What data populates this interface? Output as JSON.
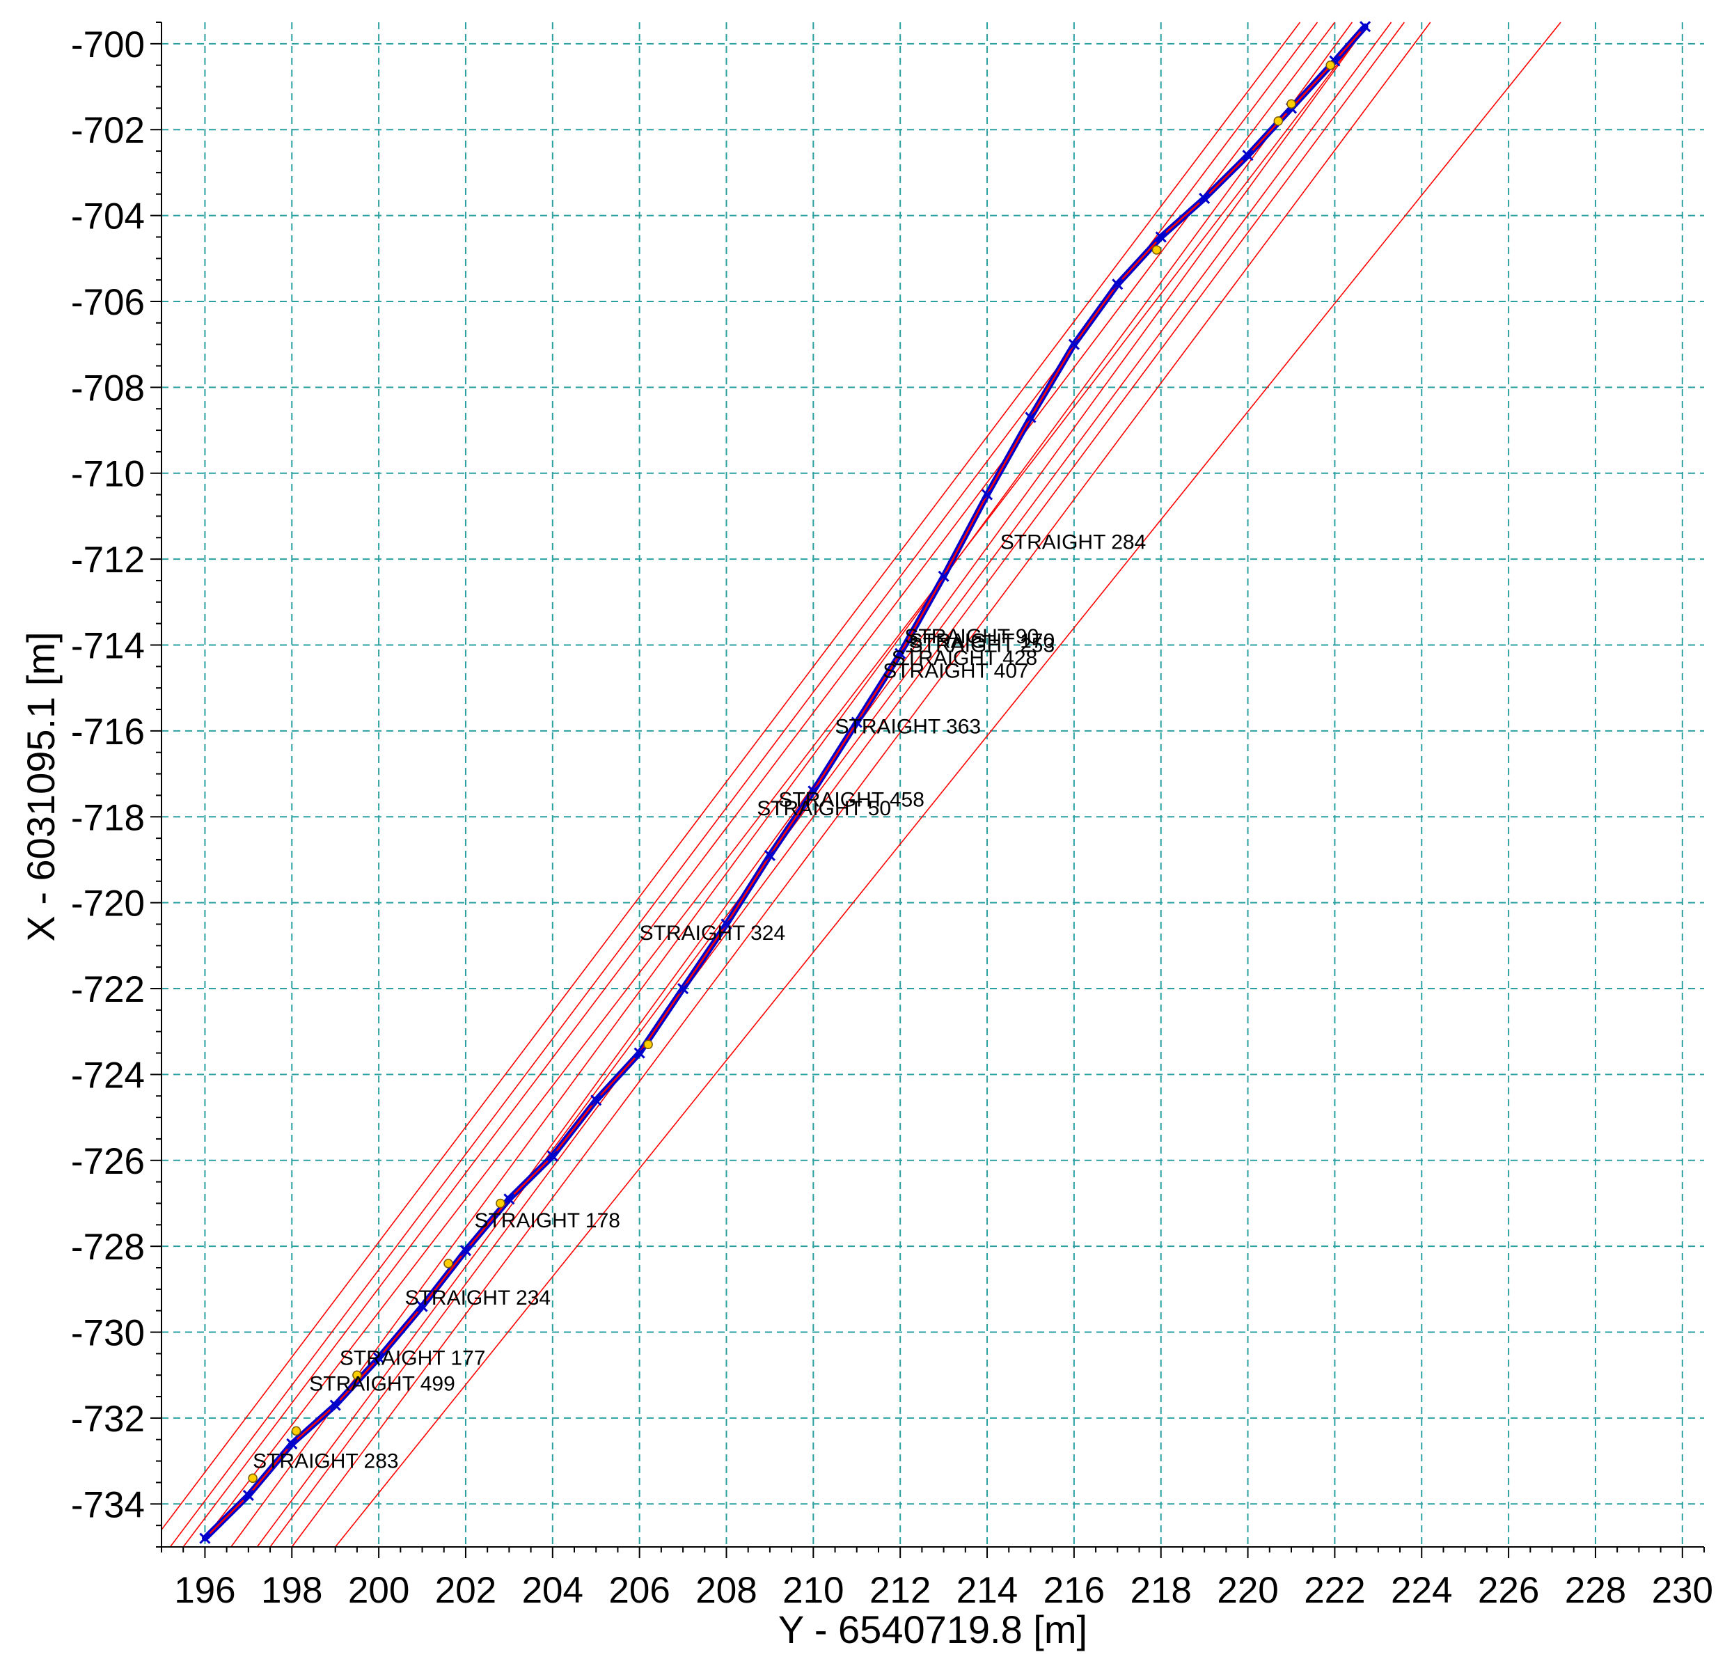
{
  "chart_data": {
    "type": "line",
    "xlabel": "Y - 6540719.8 [m]",
    "ylabel": "X - 6031095.1 [m]",
    "xlim": [
      195,
      230.5
    ],
    "ylim": [
      -735,
      -699.5
    ],
    "x_ticks": [
      196,
      198,
      200,
      202,
      204,
      206,
      208,
      210,
      212,
      214,
      216,
      218,
      220,
      222,
      224,
      226,
      228,
      230
    ],
    "y_ticks": [
      -700,
      -702,
      -704,
      -706,
      -708,
      -710,
      -712,
      -714,
      -716,
      -718,
      -720,
      -722,
      -724,
      -726,
      -728,
      -730,
      -732,
      -734
    ],
    "grid": true,
    "colors": {
      "grid": "#2aa0a0",
      "fit_lines": "#ff0000",
      "trace": "#0000cc",
      "markers": "#ffd000"
    },
    "trace": {
      "x": [
        196.0,
        197.0,
        198.0,
        199.0,
        200.0,
        201.0,
        202.0,
        203.0,
        204.0,
        205.0,
        206.0,
        207.0,
        208.0,
        209.0,
        210.0,
        211.0,
        212.0,
        213.0,
        214.0,
        215.0,
        216.0,
        217.0,
        218.0,
        219.0,
        220.0,
        221.0,
        222.0,
        222.7
      ],
      "y": [
        -734.8,
        -733.8,
        -732.6,
        -731.7,
        -730.6,
        -729.4,
        -728.1,
        -726.9,
        -725.9,
        -724.6,
        -723.5,
        -722.0,
        -720.5,
        -718.9,
        -717.4,
        -715.8,
        -714.2,
        -712.4,
        -710.5,
        -708.7,
        -707.0,
        -705.6,
        -704.5,
        -703.6,
        -702.6,
        -701.5,
        -700.4,
        -699.6
      ]
    },
    "fit_lines": [
      {
        "x": [
          196.0,
          222.8
        ],
        "y": [
          -734.8,
          -699.5
        ]
      },
      {
        "x": [
          195.5,
          222.0
        ],
        "y": [
          -735.0,
          -699.5
        ]
      },
      {
        "x": [
          195.2,
          221.6
        ],
        "y": [
          -735.0,
          -699.5
        ]
      },
      {
        "x": [
          195.0,
          221.2
        ],
        "y": [
          -734.6,
          -699.5
        ]
      },
      {
        "x": [
          196.6,
          222.4
        ],
        "y": [
          -735.0,
          -699.5
        ]
      },
      {
        "x": [
          197.2,
          223.3
        ],
        "y": [
          -735.0,
          -699.5
        ]
      },
      {
        "x": [
          197.5,
          223.6
        ],
        "y": [
          -735.0,
          -699.5
        ]
      },
      {
        "x": [
          198.0,
          224.2
        ],
        "y": [
          -735.0,
          -699.5
        ]
      },
      {
        "x": [
          199.0,
          227.2
        ],
        "y": [
          -735.0,
          -699.5
        ]
      },
      {
        "x": [
          203.0,
          222.8
        ],
        "y": [
          -727.0,
          -699.5
        ]
      }
    ],
    "markers": {
      "x": [
        197.1,
        198.1,
        199.5,
        201.6,
        202.8,
        206.2,
        217.9,
        220.7,
        221.0,
        221.9
      ],
      "y": [
        -733.4,
        -732.3,
        -731.0,
        -728.4,
        -727.0,
        -723.3,
        -704.8,
        -701.8,
        -701.4,
        -700.5
      ]
    },
    "annotations": [
      {
        "text": "STRAIGHT 284",
        "x": 214.3,
        "y": -711.6
      },
      {
        "text": "STRAIGHT 90",
        "x": 212.1,
        "y": -713.8
      },
      {
        "text": "STRAIGHT 170",
        "x": 212.2,
        "y": -713.9
      },
      {
        "text": "STRAIGHT 253",
        "x": 212.2,
        "y": -714.0
      },
      {
        "text": "STRAIGHT 428",
        "x": 211.8,
        "y": -714.3
      },
      {
        "text": "STRAIGHT 407",
        "x": 211.6,
        "y": -714.6
      },
      {
        "text": "STRAIGHT 363",
        "x": 210.5,
        "y": -715.9
      },
      {
        "text": "STRAIGHT 458",
        "x": 209.2,
        "y": -717.6
      },
      {
        "text": "STRAIGHT 50",
        "x": 208.7,
        "y": -717.8
      },
      {
        "text": "STRAIGHT 324",
        "x": 206.0,
        "y": -720.7
      },
      {
        "text": "STRAIGHT 178",
        "x": 202.2,
        "y": -727.4
      },
      {
        "text": "STRAIGHT 234",
        "x": 200.6,
        "y": -729.2
      },
      {
        "text": "STRAIGHT 177",
        "x": 199.1,
        "y": -730.6
      },
      {
        "text": "STRAIGHT 499",
        "x": 198.4,
        "y": -731.2
      },
      {
        "text": "STRAIGHT 283",
        "x": 197.1,
        "y": -733.0
      }
    ]
  }
}
